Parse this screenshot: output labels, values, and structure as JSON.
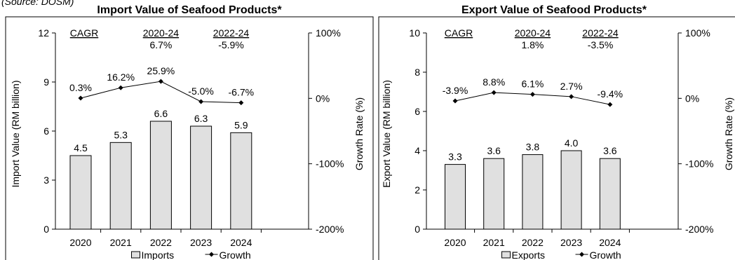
{
  "source_note": "(Source: DOSM)",
  "chart_data": [
    {
      "type": "bar",
      "title": "Import Value of Seafood Products*",
      "ylabel": "Import Value (RM billion)",
      "y2label": "Growth Rate (%)",
      "categories": [
        "2020",
        "2021",
        "2022",
        "2023",
        "2024"
      ],
      "ylim": [
        0,
        12
      ],
      "yticks": [
        "0",
        "3",
        "6",
        "9",
        "12"
      ],
      "y2lim": [
        -200,
        100
      ],
      "y2ticks": [
        "-200%",
        "-100%",
        "0%",
        "100%"
      ],
      "series": [
        {
          "name": "Imports",
          "kind": "bar",
          "values": [
            4.5,
            5.3,
            6.6,
            6.3,
            5.9
          ],
          "labels": [
            "4.5",
            "5.3",
            "6.6",
            "6.3",
            "5.9"
          ]
        },
        {
          "name": "Growth",
          "kind": "line",
          "axis": "secondary",
          "values": [
            0.3,
            16.2,
            25.9,
            -5.0,
            -6.7
          ],
          "labels": [
            "0.3%",
            "16.2%",
            "25.9%",
            "-5.0%",
            "-6.7%"
          ]
        }
      ],
      "cagr": {
        "label": "CAGR",
        "periods": [
          {
            "period": "2020-24",
            "value": "6.7%"
          },
          {
            "period": "2022-24",
            "value": "-5.9%"
          }
        ]
      },
      "legend_position": "bottom",
      "grid": false,
      "bar_color": "#e0e0e0"
    },
    {
      "type": "bar",
      "title": "Export Value of Seafood Products*",
      "ylabel": "Export Value (RM billion)",
      "y2label": "Growth Rate (%)",
      "categories": [
        "2020",
        "2021",
        "2022",
        "2023",
        "2024"
      ],
      "ylim": [
        0,
        10
      ],
      "yticks": [
        "0",
        "2",
        "4",
        "6",
        "8",
        "10"
      ],
      "y2lim": [
        -200,
        100
      ],
      "y2ticks": [
        "-200%",
        "-100%",
        "0%",
        "100%"
      ],
      "series": [
        {
          "name": "Exports",
          "kind": "bar",
          "values": [
            3.3,
            3.6,
            3.8,
            4.0,
            3.6
          ],
          "labels": [
            "3.3",
            "3.6",
            "3.8",
            "4.0",
            "3.6"
          ]
        },
        {
          "name": "Growth",
          "kind": "line",
          "axis": "secondary",
          "values": [
            -3.9,
            8.8,
            6.1,
            2.7,
            -9.4
          ],
          "labels": [
            "-3.9%",
            "8.8%",
            "6.1%",
            "2.7%",
            "-9.4%"
          ]
        }
      ],
      "cagr": {
        "label": "CAGR",
        "periods": [
          {
            "period": "2020-24",
            "value": "1.8%"
          },
          {
            "period": "2022-24",
            "value": "-3.5%"
          }
        ]
      },
      "legend_position": "bottom",
      "grid": false,
      "bar_color": "#e0e0e0"
    }
  ]
}
